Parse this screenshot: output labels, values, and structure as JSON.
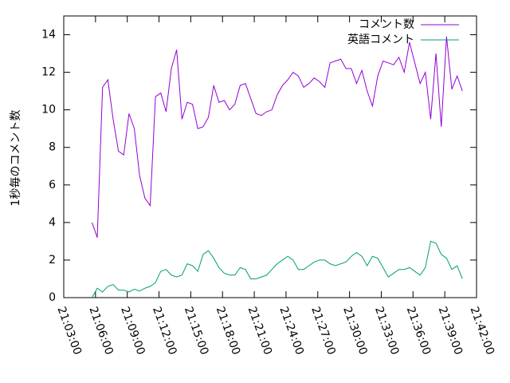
{
  "chart_data": {
    "type": "line",
    "ylabel": "1秒毎のコメント数",
    "x": [
      "21:05:40",
      "21:06:10",
      "21:06:40",
      "21:07:10",
      "21:07:40",
      "21:08:10",
      "21:08:40",
      "21:09:10",
      "21:09:40",
      "21:10:10",
      "21:10:40",
      "21:11:10",
      "21:11:40",
      "21:12:10",
      "21:12:40",
      "21:13:10",
      "21:13:40",
      "21:14:10",
      "21:14:40",
      "21:15:10",
      "21:15:40",
      "21:16:10",
      "21:16:40",
      "21:17:10",
      "21:17:40",
      "21:18:10",
      "21:18:40",
      "21:19:10",
      "21:19:40",
      "21:20:10",
      "21:20:40",
      "21:21:10",
      "21:21:40",
      "21:22:10",
      "21:22:40",
      "21:23:10",
      "21:23:40",
      "21:24:10",
      "21:24:40",
      "21:25:10",
      "21:25:40",
      "21:26:10",
      "21:26:40",
      "21:27:10",
      "21:27:40",
      "21:28:10",
      "21:28:40",
      "21:29:10",
      "21:29:40",
      "21:30:10",
      "21:30:40",
      "21:31:10",
      "21:31:40",
      "21:32:10",
      "21:32:40",
      "21:33:10",
      "21:33:40",
      "21:34:10",
      "21:34:40",
      "21:35:10",
      "21:35:40",
      "21:36:10",
      "21:36:40",
      "21:37:10",
      "21:37:40",
      "21:38:10",
      "21:38:40",
      "21:39:10",
      "21:39:40",
      "21:40:10",
      "21:40:40"
    ],
    "series": [
      {
        "name": "コメント数",
        "color": "#9400d3",
        "values": [
          4.0,
          3.2,
          11.2,
          11.6,
          9.5,
          7.8,
          7.6,
          9.8,
          9.0,
          6.5,
          5.3,
          4.9,
          10.7,
          10.9,
          9.9,
          12.2,
          13.2,
          9.5,
          10.4,
          10.3,
          9.0,
          9.1,
          9.6,
          11.3,
          10.4,
          10.5,
          10.0,
          10.3,
          11.3,
          11.4,
          10.6,
          9.8,
          9.7,
          9.9,
          10.0,
          10.8,
          11.3,
          11.6,
          12.0,
          11.8,
          11.2,
          11.4,
          11.7,
          11.5,
          11.2,
          12.5,
          12.6,
          12.7,
          12.2,
          12.2,
          11.4,
          12.1,
          11.0,
          10.2,
          11.8,
          12.6,
          12.5,
          12.4,
          12.8,
          12.0,
          13.6,
          12.5,
          11.4,
          12.0,
          9.5,
          13.0,
          9.1,
          13.9,
          11.1,
          11.8,
          11.0
        ]
      },
      {
        "name": "英語コメント",
        "color": "#009e73",
        "values": [
          0.0,
          0.5,
          0.3,
          0.6,
          0.7,
          0.4,
          0.4,
          0.3,
          0.45,
          0.35,
          0.5,
          0.6,
          0.8,
          1.4,
          1.5,
          1.2,
          1.1,
          1.2,
          1.8,
          1.7,
          1.4,
          2.3,
          2.5,
          2.1,
          1.6,
          1.3,
          1.2,
          1.2,
          1.6,
          1.5,
          1.0,
          1.0,
          1.1,
          1.2,
          1.5,
          1.8,
          2.0,
          2.2,
          2.0,
          1.5,
          1.5,
          1.7,
          1.9,
          2.0,
          2.0,
          1.8,
          1.7,
          1.8,
          1.9,
          2.2,
          2.4,
          2.2,
          1.7,
          2.2,
          2.1,
          1.6,
          1.1,
          1.3,
          1.5,
          1.5,
          1.6,
          1.4,
          1.2,
          1.6,
          3.0,
          2.9,
          2.3,
          2.1,
          1.5,
          1.7,
          1.0
        ]
      }
    ],
    "xlim": [
      "21:03:00",
      "21:42:00"
    ],
    "xticks": [
      "21:03:00",
      "21:06:00",
      "21:09:00",
      "21:12:00",
      "21:15:00",
      "21:18:00",
      "21:21:00",
      "21:24:00",
      "21:27:00",
      "21:30:00",
      "21:33:00",
      "21:36:00",
      "21:39:00",
      "21:42:00"
    ],
    "ylim": [
      0,
      15
    ],
    "yticks": [
      0,
      2,
      4,
      6,
      8,
      10,
      12,
      14
    ],
    "legend": "top-right"
  }
}
